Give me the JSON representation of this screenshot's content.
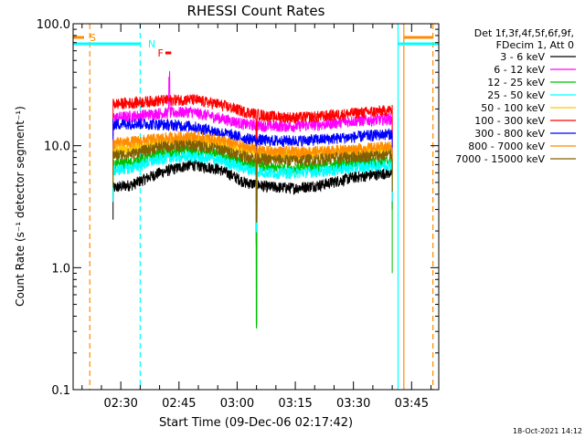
{
  "chart_data": {
    "type": "line",
    "title": "RHESSI Count Rates",
    "xlabel": "Start Time (09-Dec-06 02:17:42)",
    "ylabel": "Count Rate (s⁻¹ detector segment⁻¹)",
    "y_scale": "log",
    "ylim": [
      0.1,
      100.0
    ],
    "xlim": [
      "02:17:42",
      "03:52:00"
    ],
    "y_ticks": [
      "0.1",
      "1.0",
      "10.0",
      "100.0"
    ],
    "x_ticks": [
      "02:30",
      "02:45",
      "03:00",
      "03:15",
      "03:30",
      "03:45"
    ],
    "legend_header": [
      "Det 1f,3f,4f,5f,6f,9f,",
      "FDecim 1, Att 0"
    ],
    "legend_position": "right",
    "footer_date": "18-Oct-2021 14:12",
    "flag_labels": {
      "saa": "S",
      "night": "N",
      "flare": "F"
    },
    "series": [
      {
        "name": "3 - 6 keV",
        "color": "#000000",
        "values": [
          4.5,
          4.8,
          6.0,
          7.0,
          6.5,
          5.0,
          4.6,
          4.5,
          4.8,
          5.5,
          6.0
        ]
      },
      {
        "name": "6 - 12 keV",
        "color": "#ff00ff",
        "values": [
          17.0,
          17.5,
          18.5,
          19.0,
          17.0,
          15.0,
          14.5,
          14.5,
          15.0,
          16.0,
          16.5
        ]
      },
      {
        "name": "12 - 25 keV",
        "color": "#00c000",
        "values": [
          7.0,
          7.3,
          8.5,
          9.0,
          8.5,
          7.2,
          6.6,
          6.5,
          6.8,
          7.2,
          7.5
        ]
      },
      {
        "name": "25 - 50 keV",
        "color": "#00ffff",
        "values": [
          6.3,
          6.6,
          7.8,
          8.2,
          7.7,
          6.5,
          6.0,
          6.0,
          6.2,
          6.6,
          7.0
        ]
      },
      {
        "name": "50 - 100 keV",
        "color": "#ffc800",
        "values": [
          9.3,
          9.6,
          10.8,
          11.2,
          10.5,
          9.2,
          8.5,
          8.4,
          8.6,
          9.0,
          9.3
        ]
      },
      {
        "name": "100 - 300 keV",
        "color": "#ff0000",
        "values": [
          22.0,
          22.5,
          23.5,
          24.0,
          22.0,
          19.0,
          17.5,
          17.0,
          17.5,
          18.5,
          19.5
        ]
      },
      {
        "name": "300 - 800 keV",
        "color": "#0000ff",
        "values": [
          15.0,
          15.3,
          15.0,
          14.5,
          13.0,
          11.5,
          11.0,
          11.0,
          11.3,
          11.8,
          12.5
        ]
      },
      {
        "name": "800 - 7000 keV",
        "color": "#ff8c00",
        "values": [
          10.5,
          10.8,
          11.5,
          12.0,
          11.2,
          9.8,
          9.0,
          8.9,
          9.0,
          9.4,
          9.8
        ]
      },
      {
        "name": "7000 - 15000 keV",
        "color": "#806000",
        "values": [
          8.3,
          8.6,
          9.8,
          10.2,
          9.5,
          8.2,
          7.7,
          7.6,
          7.8,
          8.1,
          8.4
        ]
      }
    ],
    "x_sample_times": [
      "02:28:00",
      "02:33:00",
      "02:40:00",
      "02:48:00",
      "02:55:00",
      "03:02:00",
      "03:08:00",
      "03:15:00",
      "03:22:00",
      "03:30:00",
      "03:39:00"
    ],
    "data_range": [
      "02:28:00",
      "03:40:00"
    ],
    "dropout_time": "03:05:00",
    "flag_lines": [
      {
        "kind": "saa",
        "time": "02:22:00",
        "color": "#ff8c00"
      },
      {
        "kind": "night",
        "time": "02:35:00",
        "color": "#00ffff"
      },
      {
        "kind": "night",
        "time": "03:41:30",
        "color": "#00ffff"
      },
      {
        "kind": "saa",
        "time": "03:43:00",
        "color": "#ff8c00"
      },
      {
        "kind": "saa",
        "time": "03:50:30",
        "color": "#ff8c00"
      }
    ]
  }
}
